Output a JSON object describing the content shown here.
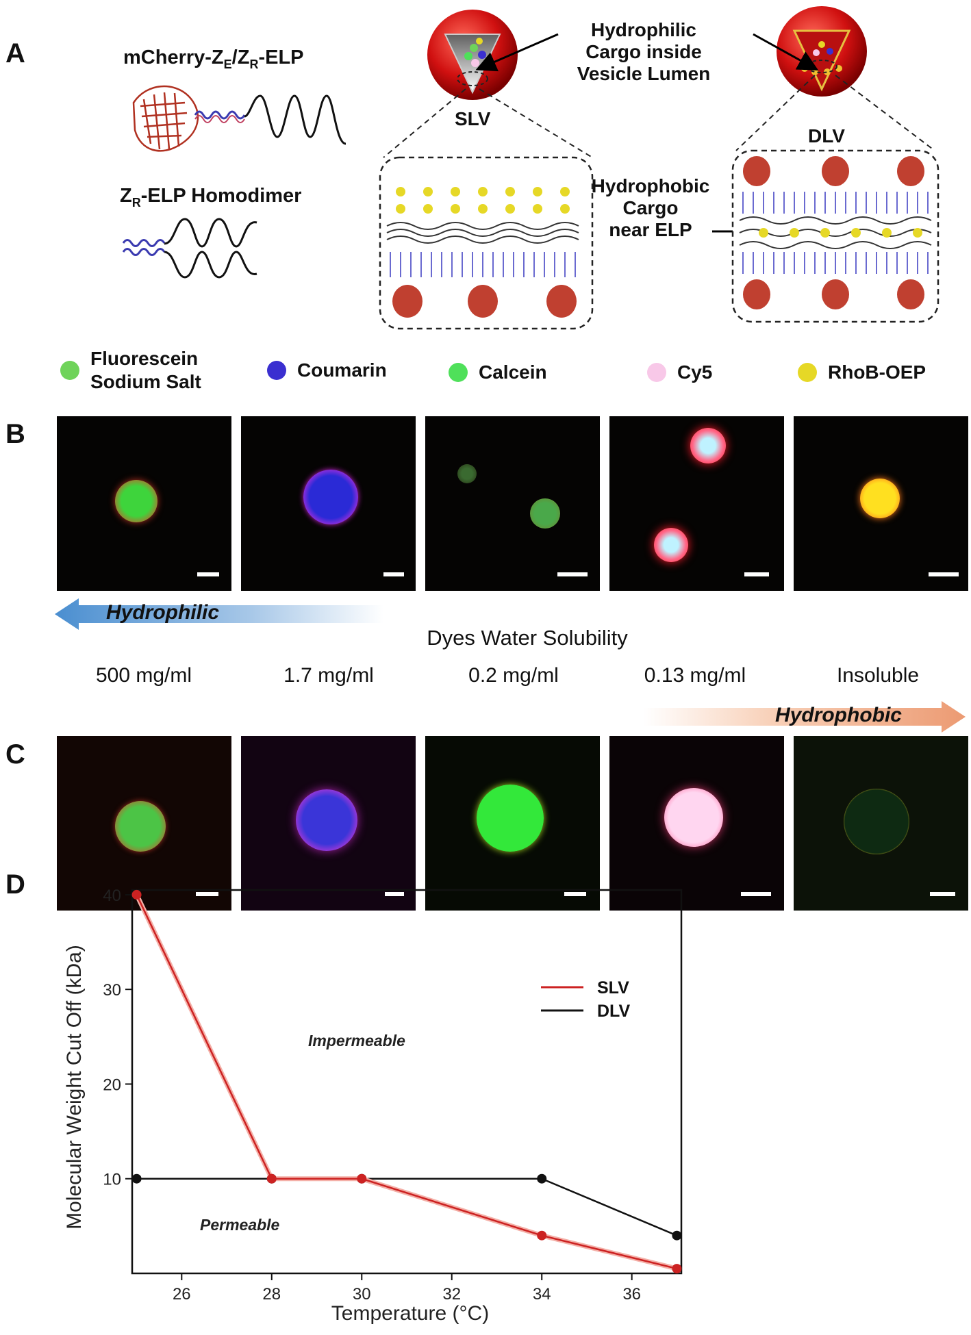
{
  "panel_a": {
    "letter": "A",
    "construct_label_parts": [
      "mCherry-Z",
      "E",
      "/Z",
      "R",
      "-ELP"
    ],
    "homodimer_label_parts": [
      "Z",
      "R",
      "-ELP Homodimer"
    ],
    "slv_label": "SLV",
    "dlv_label": "DLV",
    "hydrophilic_note": [
      "Hydrophilic",
      "Cargo inside",
      "Vesicle Lumen"
    ],
    "hydrophobic_note": [
      "Hydrophobic",
      "Cargo",
      "near ELP"
    ]
  },
  "legend": [
    {
      "label_lines": [
        "Fluorescein",
        "Sodium Salt"
      ],
      "color": "#6fd35a"
    },
    {
      "label_lines": [
        "Coumarin"
      ],
      "color": "#3a2fd0"
    },
    {
      "label_lines": [
        "Calcein"
      ],
      "color": "#4fe05a"
    },
    {
      "label_lines": [
        "Cy5"
      ],
      "color": "#f8c8e8"
    },
    {
      "label_lines": [
        "RhoB-OEP"
      ],
      "color": "#e6d826"
    }
  ],
  "panel_b": {
    "letter": "B",
    "images": [
      {
        "name": "fluorescein-slv-image",
        "core": "#3ed43c",
        "rim": "#e0462a"
      },
      {
        "name": "coumarin-slv-image",
        "core": "#2a2ad6",
        "rim": "#e030e0"
      },
      {
        "name": "calcein-slv-image",
        "core": "#4aa84a",
        "rim": "#6a8a30"
      },
      {
        "name": "cy5-slv-image",
        "core": "#bff2ff",
        "rim": "#ff2a3a"
      },
      {
        "name": "rhob-oep-slv-image",
        "core": "#ffe020",
        "rim": "#ff7a18"
      }
    ]
  },
  "solubility": {
    "hydrophilic_arrow": "Hydrophilic",
    "title": "Dyes Water Solubility",
    "values": [
      "500 mg/ml",
      "1.7 mg/ml",
      "0.2 mg/ml",
      "0.13 mg/ml",
      "Insoluble"
    ],
    "hydrophobic_arrow": "Hydrophobic"
  },
  "panel_c": {
    "letter": "C",
    "images": [
      {
        "name": "fluorescein-dlv-image",
        "core": "#4cc446",
        "rim": "#d64a2a"
      },
      {
        "name": "coumarin-dlv-image",
        "core": "#3a35d8",
        "rim": "#e03ad8"
      },
      {
        "name": "calcein-dlv-image",
        "core": "#33e83a",
        "rim": "#d8f03a"
      },
      {
        "name": "cy5-dlv-image",
        "core": "#ffd6f0",
        "rim": "#ff6aa0"
      },
      {
        "name": "rhob-oep-dlv-image",
        "core": "#0e2a12",
        "rim": "#f0d020"
      }
    ]
  },
  "panel_d": {
    "letter": "D",
    "region_labels": {
      "impermeable": "Impermeable",
      "permeable": "Permeable"
    }
  },
  "chart_data": {
    "type": "line",
    "title": "",
    "xlabel": "Temperature (°C)",
    "ylabel": "Molecular Weight Cut Off (kDa)",
    "xlim": [
      24.9,
      37.1
    ],
    "ylim": [
      0,
      40.5
    ],
    "xticks": [
      26,
      28,
      30,
      32,
      34,
      36
    ],
    "yticks": [
      10,
      20,
      30,
      40
    ],
    "tick_labels_x": [
      "26",
      "28",
      "30",
      "32",
      "34",
      "36"
    ],
    "tick_labels_y": [
      "10",
      "20",
      "30",
      "40"
    ],
    "grid": false,
    "legend_position": "top-right",
    "series": [
      {
        "name": "SLV",
        "color": "#cc2222",
        "x": [
          25,
          28,
          30,
          34,
          37
        ],
        "y": [
          40,
          10,
          10,
          4,
          0.5
        ]
      },
      {
        "name": "DLV",
        "color": "#111111",
        "x": [
          25,
          28,
          30,
          34,
          37
        ],
        "y": [
          10,
          10,
          10,
          10,
          4
        ]
      }
    ]
  }
}
